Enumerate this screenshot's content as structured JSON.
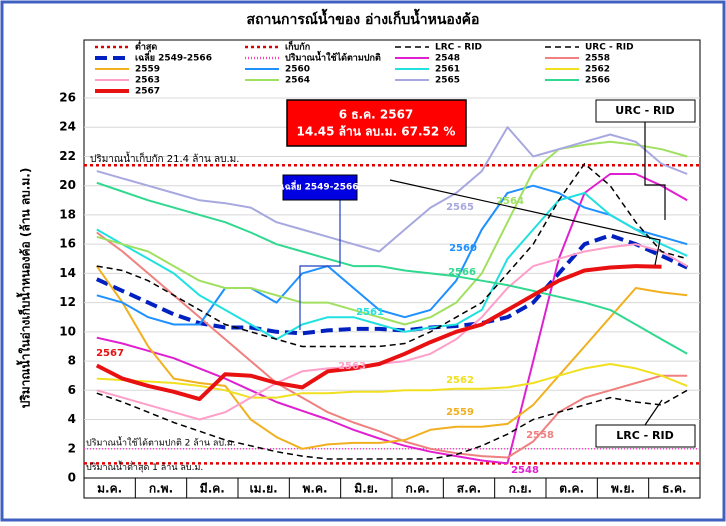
{
  "chart_data": {
    "type": "line",
    "title": "สถานการณ์น้ำของ อ่างเก็บน้ำหนองค้อ",
    "y_label": "ปริมาณน้ำในอ่างเก็บน้ำหนองค้อ (ล้าน ลบ.ม.)",
    "categories": [
      "ม.ค.",
      null,
      "ก.พ.",
      null,
      "มี.ค.",
      null,
      "เม.ย.",
      null,
      "พ.ค.",
      null,
      "มิ.ย.",
      null,
      "ก.ค.",
      null,
      "ส.ค.",
      null,
      "ก.ย.",
      null,
      "ต.ค.",
      null,
      "พ.ย.",
      null,
      "ธ.ค.",
      null
    ],
    "ylim": [
      0,
      26
    ],
    "yticks": [
      0,
      2,
      4,
      6,
      8,
      10,
      12,
      14,
      16,
      18,
      20,
      22,
      24,
      26
    ],
    "grid": true,
    "hlines": [
      {
        "name": "ต่ำสุด",
        "color": "#e00000",
        "value": 1
      },
      {
        "name": "เก็บกัก",
        "color": "#e00000",
        "value": 21.4
      },
      {
        "name": "ปริมาณน้ำใช้ได้ตามปกติ",
        "color": "#ff40c0",
        "value": 2
      }
    ],
    "series": [
      {
        "name": "LRC - RID",
        "color": "#000000",
        "style": "dashed",
        "values": [
          5.8,
          5.2,
          4.5,
          3.8,
          3.2,
          2.6,
          2.2,
          1.8,
          1.5,
          1.3,
          1.3,
          1.3,
          1.3,
          1.3,
          1.6,
          2.2,
          3.0,
          4.0,
          4.5,
          5.0,
          5.5,
          5.2,
          5.0,
          6.0
        ]
      },
      {
        "name": "URC - RID",
        "color": "#000000",
        "style": "dashed",
        "values": [
          14.5,
          14.2,
          13.5,
          12.5,
          11.5,
          10.5,
          10.0,
          9.5,
          9.0,
          9.0,
          9.0,
          9.0,
          9.2,
          10.0,
          11.0,
          12.0,
          14.0,
          16.0,
          19.0,
          21.5,
          20.0,
          17.5,
          15.5,
          15.0
        ]
      },
      {
        "name": "เฉลี่ย 2549-2566",
        "color": "#0020c0",
        "style": "thick-dashed",
        "values": [
          13.6,
          12.8,
          12.0,
          11.2,
          10.6,
          10.3,
          10.3,
          10.0,
          9.9,
          10.1,
          10.2,
          10.2,
          10.1,
          10.3,
          10.4,
          10.6,
          11.0,
          12.0,
          14.0,
          16.0,
          16.6,
          16.0,
          15.2,
          14.4
        ]
      },
      {
        "name": "2548",
        "color": "#e020d0",
        "style": "solid",
        "values": [
          9.6,
          9.2,
          8.7,
          8.2,
          7.5,
          6.8,
          6.0,
          5.2,
          4.6,
          4.0,
          3.3,
          2.7,
          2.2,
          1.8,
          1.5,
          1.2,
          1.0,
          8.0,
          15.0,
          19.5,
          20.8,
          20.8,
          20.0,
          19.0
        ]
      },
      {
        "name": "2558",
        "color": "#f08080",
        "style": "solid",
        "values": [
          16.8,
          15.5,
          14.0,
          12.5,
          11.0,
          9.5,
          8.0,
          6.5,
          5.5,
          4.5,
          3.8,
          3.2,
          2.5,
          2.0,
          1.7,
          1.5,
          1.4,
          2.5,
          4.5,
          5.5,
          6.0,
          6.5,
          7.0,
          7.0
        ]
      },
      {
        "name": "2559",
        "color": "#f0b020",
        "style": "solid",
        "values": [
          14.5,
          12.0,
          9.0,
          6.8,
          6.5,
          6.3,
          4.0,
          2.8,
          2.0,
          2.3,
          2.4,
          2.4,
          2.6,
          3.3,
          3.5,
          3.5,
          3.7,
          5.0,
          7.0,
          9.0,
          11.0,
          13.0,
          12.7,
          12.5
        ]
      },
      {
        "name": "2560",
        "color": "#1e90ff",
        "style": "solid",
        "values": [
          12.5,
          12.0,
          11.0,
          10.5,
          10.5,
          13.0,
          13.0,
          12.0,
          14.0,
          14.5,
          13.0,
          11.5,
          11.0,
          11.5,
          13.5,
          17.0,
          19.5,
          20.0,
          19.5,
          18.5,
          18.0,
          17.0,
          16.5,
          16.0
        ]
      },
      {
        "name": "2561",
        "color": "#20e0e0",
        "style": "solid",
        "values": [
          17.0,
          16.0,
          15.0,
          14.0,
          12.5,
          11.5,
          10.5,
          9.5,
          10.5,
          11.0,
          11.0,
          10.5,
          10.0,
          10.3,
          10.5,
          11.5,
          15.0,
          17.0,
          19.0,
          19.5,
          18.0,
          17.0,
          16.0,
          15.2
        ]
      },
      {
        "name": "2562",
        "color": "#f0e020",
        "style": "solid",
        "values": [
          6.8,
          6.7,
          6.6,
          6.5,
          6.3,
          6.0,
          5.5,
          5.5,
          5.8,
          5.8,
          5.9,
          5.9,
          6.0,
          6.0,
          6.1,
          6.1,
          6.2,
          6.5,
          7.0,
          7.5,
          7.8,
          7.5,
          7.0,
          6.3
        ]
      },
      {
        "name": "2563",
        "color": "#ff9ec8",
        "style": "solid",
        "values": [
          6.0,
          5.5,
          5.0,
          4.5,
          4.0,
          4.5,
          5.5,
          6.5,
          7.3,
          7.5,
          7.6,
          7.8,
          8.0,
          8.5,
          9.5,
          11.0,
          13.0,
          14.5,
          15.0,
          15.5,
          15.8,
          16.0,
          15.5,
          14.5
        ]
      },
      {
        "name": "2564",
        "color": "#a0e060",
        "style": "solid",
        "values": [
          16.5,
          16.0,
          15.5,
          14.5,
          13.5,
          13.0,
          13.0,
          12.5,
          12.0,
          12.0,
          11.5,
          11.0,
          10.5,
          11.0,
          12.0,
          14.0,
          17.5,
          21.0,
          22.5,
          22.8,
          23.0,
          22.8,
          22.5,
          22.0
        ]
      },
      {
        "name": "2565",
        "color": "#a8a8e0",
        "style": "solid",
        "values": [
          21.0,
          20.5,
          20.0,
          19.5,
          19.0,
          18.8,
          18.5,
          17.5,
          17.0,
          16.5,
          16.0,
          15.5,
          17.0,
          18.5,
          19.5,
          21.0,
          24.0,
          22.0,
          22.5,
          23.0,
          23.5,
          23.0,
          21.5,
          20.8
        ]
      },
      {
        "name": "2566",
        "color": "#30d890",
        "style": "solid",
        "values": [
          20.2,
          19.6,
          19.0,
          18.5,
          18.0,
          17.5,
          16.8,
          16.0,
          15.5,
          15.0,
          14.5,
          14.5,
          14.2,
          14.0,
          13.8,
          13.5,
          13.2,
          12.8,
          12.4,
          12.0,
          11.5,
          10.5,
          9.5,
          8.5
        ]
      },
      {
        "name": "2567",
        "color": "#e81010",
        "style": "thick",
        "values": [
          7.7,
          6.8,
          6.3,
          5.9,
          5.4,
          7.1,
          7.0,
          6.5,
          6.2,
          7.3,
          7.5,
          7.8,
          8.5,
          9.3,
          10.0,
          10.5,
          11.5,
          12.5,
          13.5,
          14.2,
          14.4,
          14.5,
          14.45,
          null
        ]
      }
    ],
    "annotations": {
      "storage": "ปริมาณน้ำเก็บกัก 21.4 ล้าน ลบ.ม.",
      "usable": "ปริมาณน้ำใช้ได้ตามปกติ 2 ล้าน ลบ.ม.",
      "minimum": "ปริมาณน้ำต่ำสุด 1 ล้าน ลบ.ม.",
      "current_date": "6 ธ.ค. 2567",
      "current_value": "14.45 ล้าน ลบ.ม. 67.52 %"
    }
  }
}
